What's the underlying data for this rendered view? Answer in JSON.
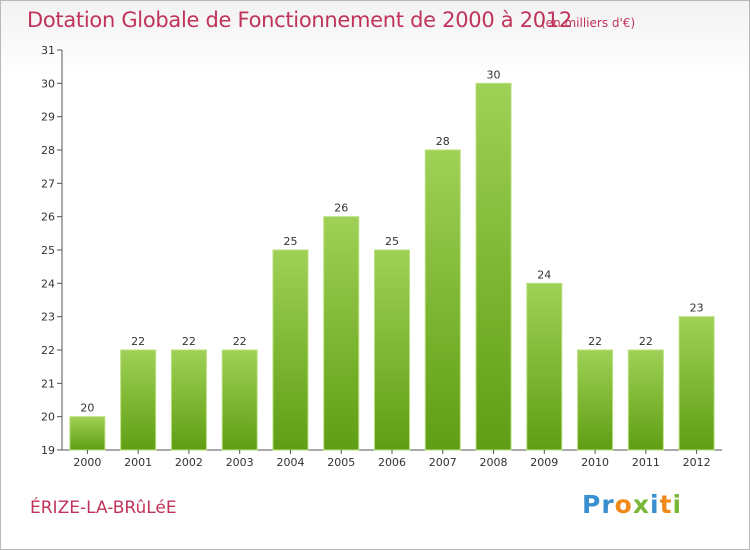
{
  "title": "Dotation Globale de Fonctionnement de 2000 à 2012",
  "subtitle": "(en milliers d'€)",
  "commune": "ÉRIZE-LA-BRûLéE",
  "brand": {
    "letters": [
      "P",
      "r",
      "o",
      "x",
      "i",
      "t",
      "i"
    ],
    "colors": [
      "#3a8fd0",
      "#3a8fd0",
      "#f08a1c",
      "#7ab83a",
      "#3a8fd0",
      "#f08a1c",
      "#7ab83a"
    ]
  },
  "colors": {
    "bar_top": "#9fd156",
    "bar_bottom": "#5f9e14",
    "text": "#c0335a"
  },
  "chart_data": {
    "type": "bar",
    "categories": [
      "2000",
      "2001",
      "2002",
      "2003",
      "2004",
      "2005",
      "2006",
      "2007",
      "2008",
      "2009",
      "2010",
      "2011",
      "2012"
    ],
    "values": [
      20,
      22,
      22,
      22,
      25,
      26,
      25,
      28,
      30,
      24,
      22,
      22,
      23
    ],
    "ylim": [
      19,
      31
    ],
    "yticks": [
      19,
      20,
      21,
      22,
      23,
      24,
      25,
      26,
      27,
      28,
      29,
      30,
      31
    ],
    "grid": false,
    "legend": "none"
  }
}
